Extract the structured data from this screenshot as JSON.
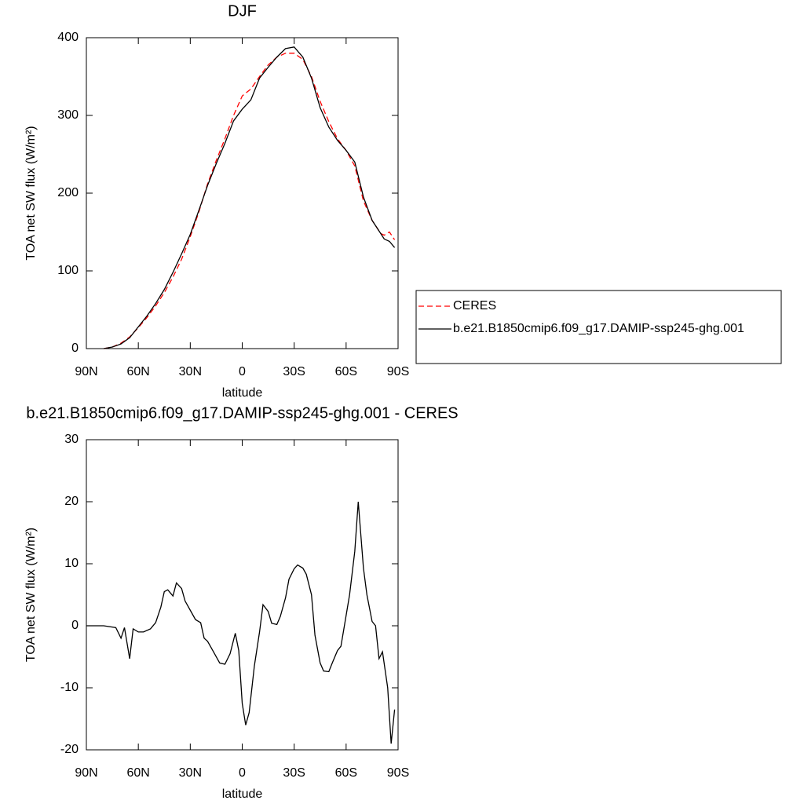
{
  "chart_data": [
    {
      "type": "line",
      "title": "DJF",
      "xlabel": "latitude",
      "ylabel": "TOA net SW flux (W/m²)",
      "xlim": [
        90,
        -90
      ],
      "ylim": [
        0,
        400
      ],
      "xticks": [
        {
          "value": 90,
          "label": "90N"
        },
        {
          "value": 60,
          "label": "60N"
        },
        {
          "value": 30,
          "label": "30N"
        },
        0,
        {
          "value": -30,
          "label": "30S"
        },
        {
          "value": -60,
          "label": "60S"
        },
        {
          "value": -90,
          "label": "90S"
        }
      ],
      "yticks": [
        0,
        100,
        200,
        300,
        400
      ],
      "legend": "right",
      "x": [
        80,
        75,
        70,
        65,
        60,
        55,
        50,
        45,
        40,
        35,
        30,
        25,
        20,
        15,
        10,
        5,
        0,
        -5,
        -10,
        -15,
        -20,
        -25,
        -30,
        -35,
        -40,
        -45,
        -50,
        -55,
        -60,
        -65,
        -70,
        -75,
        -80,
        -82,
        -85,
        -88
      ],
      "series": [
        {
          "name": "CERES",
          "color": "#ff0000",
          "style": "dashed",
          "values": [
            0,
            2,
            7,
            15,
            27,
            40,
            55,
            72,
            92,
            115,
            144,
            176,
            212,
            242,
            270,
            300,
            325,
            334,
            350,
            365,
            375,
            380,
            380,
            372,
            350,
            318,
            292,
            270,
            255,
            235,
            190,
            165,
            148,
            146,
            150,
            140
          ]
        },
        {
          "name": "b.e21.B1850cmip6.f09_g17.DAMIP-ssp245-ghg.001",
          "color": "#000000",
          "style": "solid",
          "values": [
            0,
            2,
            6,
            14,
            28,
            42,
            58,
            76,
            98,
            122,
            147,
            178,
            210,
            238,
            264,
            293,
            308,
            320,
            348,
            362,
            375,
            386,
            388,
            375,
            348,
            310,
            285,
            268,
            255,
            240,
            195,
            165,
            148,
            141,
            138,
            130
          ]
        }
      ]
    },
    {
      "type": "line",
      "title": "b.e21.B1850cmip6.f09_g17.DAMIP-ssp245-ghg.001 - CERES",
      "xlabel": "latitude",
      "ylabel": "TOA net SW flux (W/m²)",
      "xlim": [
        90,
        -90
      ],
      "ylim": [
        -20,
        30
      ],
      "xticks": [
        {
          "value": 90,
          "label": "90N"
        },
        {
          "value": 60,
          "label": "60N"
        },
        {
          "value": 30,
          "label": "30N"
        },
        0,
        {
          "value": -30,
          "label": "30S"
        },
        {
          "value": -60,
          "label": "60S"
        },
        {
          "value": -90,
          "label": "90S"
        }
      ],
      "yticks": [
        -20,
        -10,
        0,
        10,
        20,
        30
      ],
      "color": "#000000",
      "x": [
        90,
        80,
        73,
        70,
        68,
        65,
        63,
        60,
        57,
        53,
        50,
        47,
        45,
        43,
        40,
        38,
        35,
        33,
        30,
        27,
        24,
        22,
        20,
        17,
        13,
        10,
        7,
        4,
        2,
        0,
        -2,
        -4,
        -7,
        -10,
        -12,
        -15,
        -17,
        -20,
        -22,
        -25,
        -27,
        -30,
        -32,
        -35,
        -37,
        -40,
        -42,
        -45,
        -47,
        -50,
        -52,
        -55,
        -57,
        -59,
        -62,
        -65,
        -67,
        -70,
        -72,
        -75,
        -77,
        -79,
        -81,
        -84,
        -86,
        -88
      ],
      "values": [
        0,
        0,
        -0.3,
        -2,
        -0.3,
        -5.3,
        -0.5,
        -1,
        -1,
        -0.5,
        0.5,
        3,
        5.5,
        5.8,
        4.8,
        6.9,
        6,
        4,
        2.5,
        1,
        0.5,
        -2,
        -2.5,
        -4,
        -6,
        -6.2,
        -4.5,
        -1.2,
        -4,
        -12.5,
        -16,
        -14,
        -6.5,
        -1,
        3.4,
        2.3,
        0.4,
        0.2,
        1.5,
        4.5,
        7.5,
        9.2,
        9.8,
        9.3,
        8.3,
        5,
        -1.5,
        -6,
        -7.3,
        -7.4,
        -6,
        -4,
        -3.3,
        0,
        5,
        12,
        20,
        9.3,
        5,
        0.7,
        0,
        -5.3,
        -4.2,
        -10,
        -19,
        -13.5
      ]
    }
  ]
}
